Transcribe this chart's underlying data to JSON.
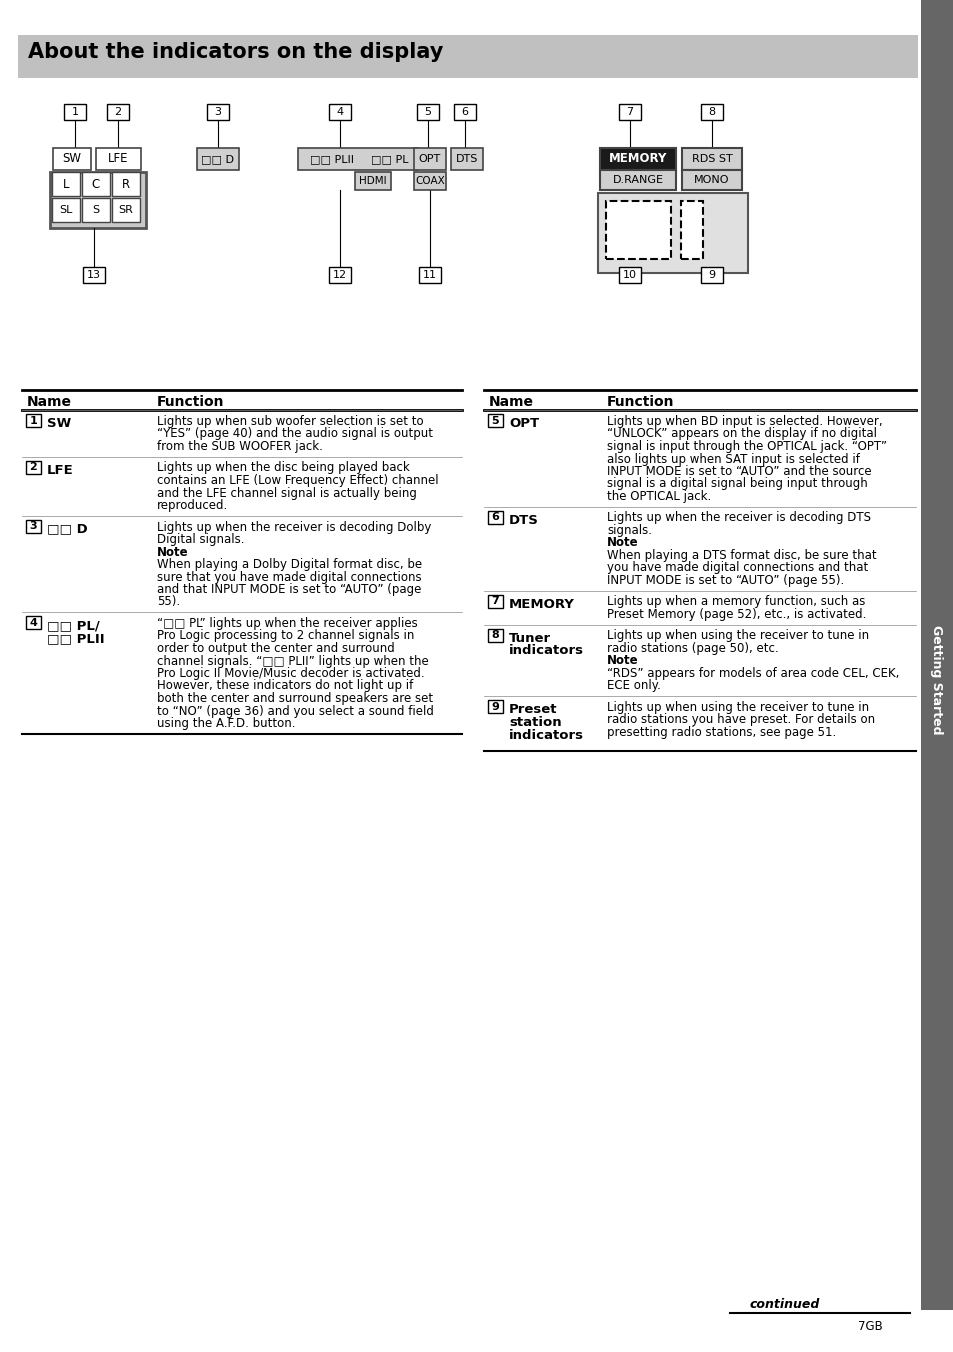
{
  "title": "About the indicators on the display",
  "title_bg": "#c0c0c0",
  "sidebar_bg": "#666666",
  "sidebar_text": "Getting Started",
  "table_left": {
    "rows": [
      {
        "num": "1",
        "name": "SW",
        "function": "Lights up when sub woofer selection is set to “YES” (page 40) and the audio signal is output from the SUB WOOFER jack.",
        "note": null
      },
      {
        "num": "2",
        "name": "LFE",
        "function": "Lights up when the disc being played back contains an LFE (Low Frequency Effect) channel and the LFE channel signal is actually being reproduced.",
        "note": null
      },
      {
        "num": "3",
        "name": "□□ D",
        "function": "Lights up when the receiver is decoding Dolby Digital signals.",
        "note": "When playing a Dolby Digital format disc, be sure that you have made digital connections and that INPUT MODE is set to “AUTO” (page 55)."
      },
      {
        "num": "4",
        "name": "□□ PL/\n□□ PLII",
        "function": "“□□ PL” lights up when the receiver applies Pro Logic processing to 2 channel signals in order to output the center and surround channel signals. “□□ PLII” lights up when the Pro Logic II Movie/Music decoder is activated. However, these indicators do not light up if both the center and surround speakers are set to “NO” (page 36) and you select a sound field using the A.F.D. button.",
        "note": null
      }
    ]
  },
  "table_right": {
    "rows": [
      {
        "num": "5",
        "name": "OPT",
        "function": "Lights up when BD input is selected. However, “UNLOCK” appears on the display if no digital signal is input through the OPTICAL jack. “OPT” also lights up when SAT input is selected if INPUT MODE is set to “AUTO” and the source signal is a digital signal being input through the OPTICAL jack.",
        "note": null
      },
      {
        "num": "6",
        "name": "DTS",
        "function": "Lights up when the receiver is decoding DTS signals.",
        "note": "When playing a DTS format disc, be sure that you have made digital connections and that INPUT MODE is set to “AUTO” (page 55)."
      },
      {
        "num": "7",
        "name": "MEMORY",
        "function": "Lights up when a memory function, such as Preset Memory (page 52), etc., is activated.",
        "note": null
      },
      {
        "num": "8",
        "name": "Tuner\nindicators",
        "function": "Lights up when using the receiver to tune in radio stations (page 50), etc.",
        "note": "“RDS” appears for models of area code CEL, CEK, ECE only."
      },
      {
        "num": "9",
        "name": "Preset\nstation\nindicators",
        "function": "Lights up when using the receiver to tune in radio stations you have preset. For details on presetting radio stations, see page 51.",
        "note": null
      }
    ]
  }
}
